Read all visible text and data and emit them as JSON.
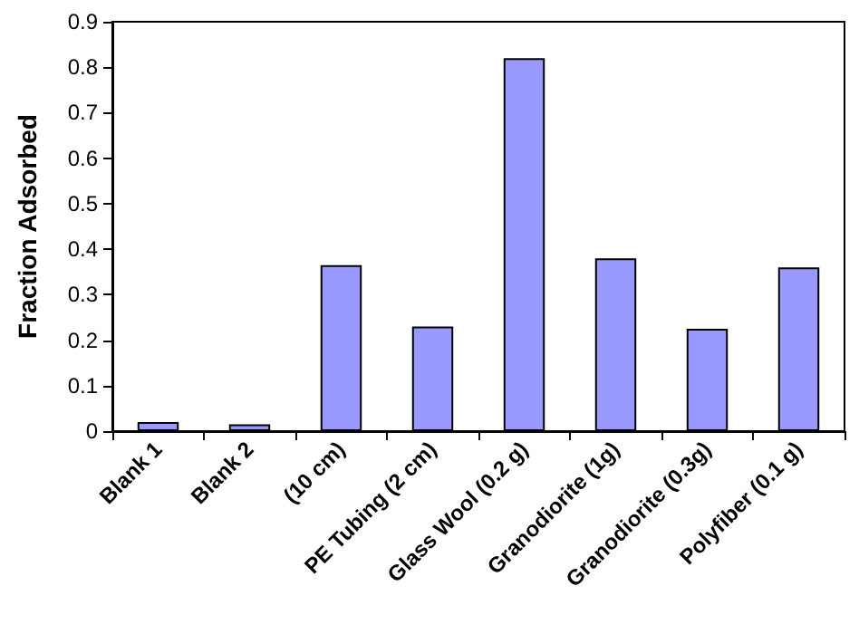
{
  "chart_data": {
    "type": "bar",
    "ylabel": "Fraction Adsorbed",
    "categories": [
      "Blank 1",
      "Blank 2",
      "(10 cm)",
      "PE Tubing (2 cm)",
      "Glass Wool (0.2 g)",
      "Granodiorite (1g)",
      "Granodiorite (0.3g)",
      "Polyfiber (0.1 g)"
    ],
    "values": [
      0.02,
      0.015,
      0.365,
      0.23,
      0.82,
      0.38,
      0.225,
      0.36
    ],
    "color": "#9999ff",
    "ylim": [
      0,
      0.9
    ],
    "yticks": [
      0,
      0.1,
      0.2,
      0.3,
      0.4,
      0.5,
      0.6,
      0.7,
      0.8,
      0.9
    ],
    "grid": false
  }
}
